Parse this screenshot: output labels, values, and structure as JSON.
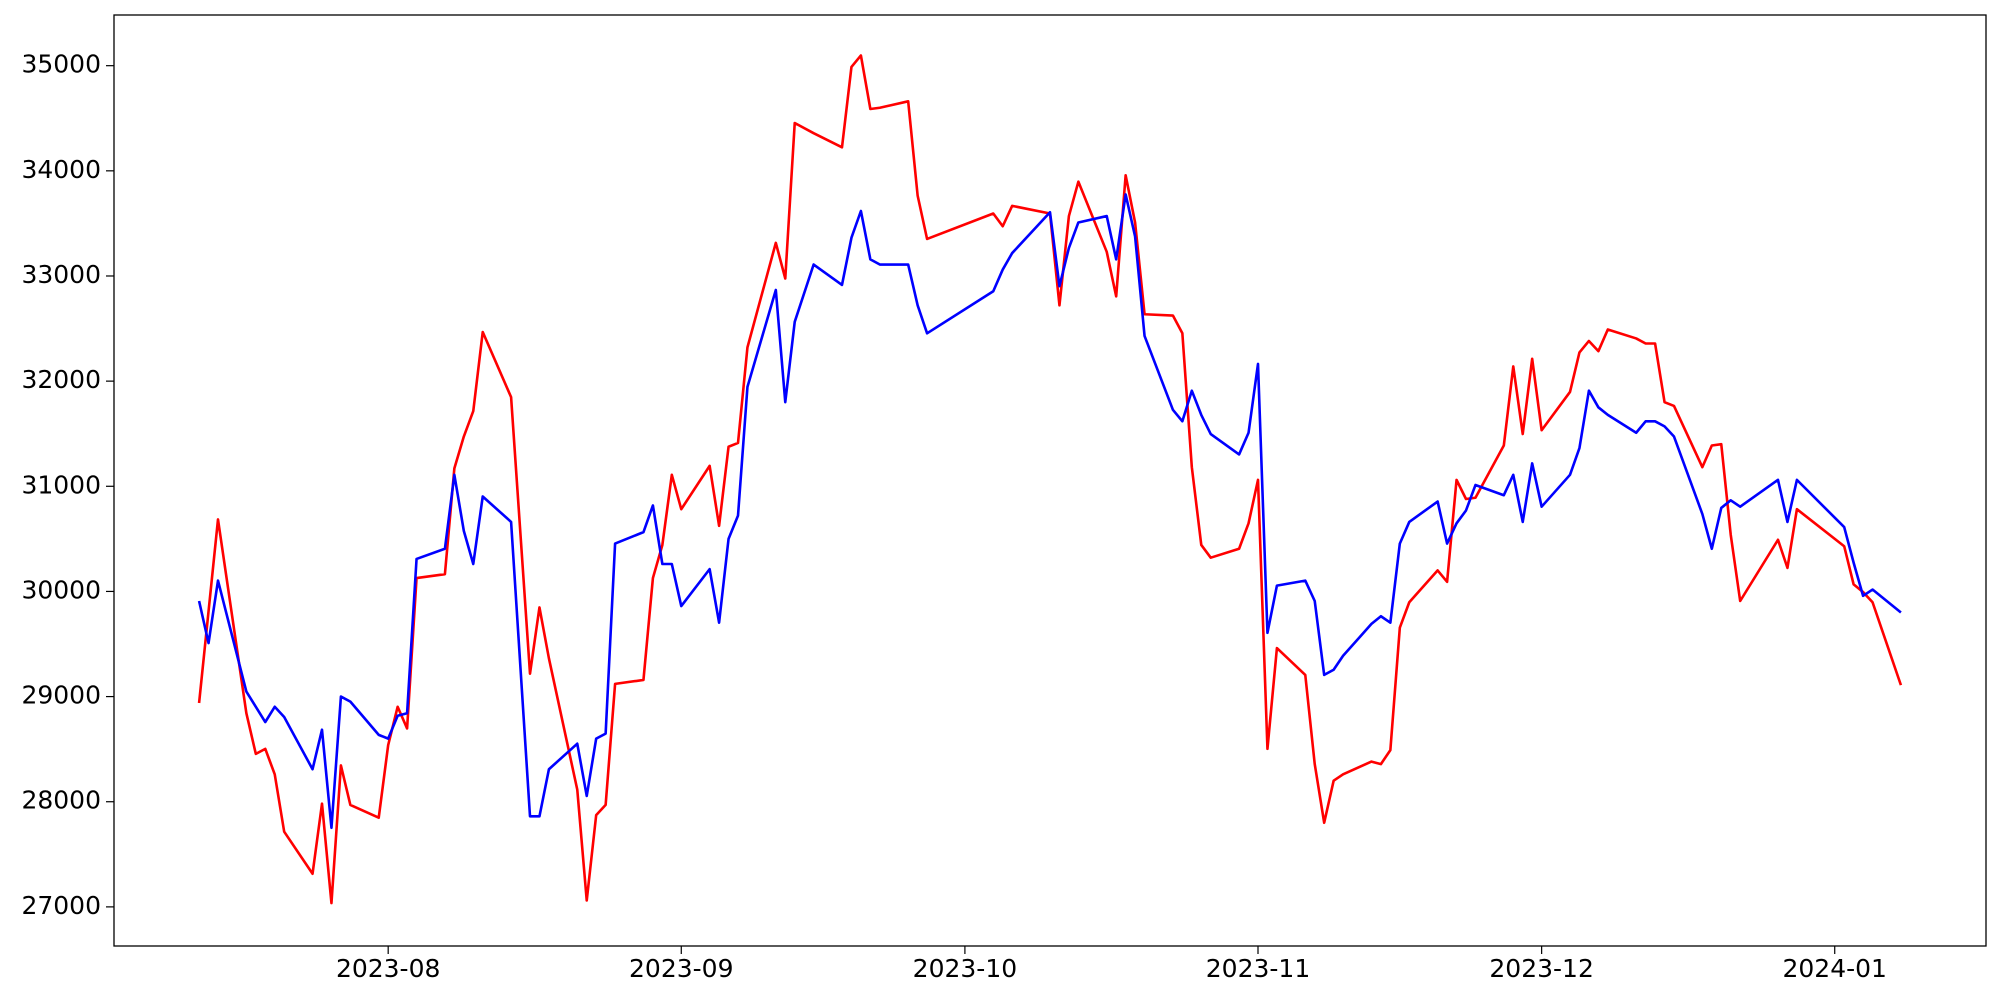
{
  "chart_data": {
    "type": "line",
    "x": [
      19550,
      19551,
      19552,
      19555,
      19556,
      19557,
      19558,
      19559,
      19562,
      19563,
      19564,
      19565,
      19566,
      19569,
      19570,
      19571,
      19572,
      19573,
      19576,
      19577,
      19578,
      19579,
      19580,
      19583,
      19585,
      19586,
      19587,
      19590,
      19591,
      19592,
      19593,
      19594,
      19597,
      19598,
      19599,
      19600,
      19601,
      19604,
      19605,
      19606,
      19607,
      19608,
      19611,
      19612,
      19613,
      19615,
      19618,
      19619,
      19620,
      19621,
      19622,
      19625,
      19626,
      19627,
      19634,
      19635,
      19636,
      19640,
      19641,
      19642,
      19643,
      19646,
      19647,
      19648,
      19649,
      19650,
      19653,
      19654,
      19655,
      19656,
      19657,
      19660,
      19661,
      19662,
      19663,
      19664,
      19667,
      19668,
      19669,
      19670,
      19671,
      19674,
      19675,
      19676,
      19677,
      19678,
      19681,
      19682,
      19683,
      19684,
      19685,
      19688,
      19689,
      19690,
      19691,
      19692,
      19695,
      19696,
      19697,
      19698,
      19699,
      19702,
      19703,
      19704,
      19705,
      19706,
      19709,
      19710,
      19711,
      19712,
      19713,
      19717,
      19718,
      19719,
      19724,
      19725,
      19726,
      19727,
      19730
    ],
    "series": [
      {
        "name": "red",
        "color": "#ff0000",
        "values": [
          28939,
          29812,
          30685,
          28842,
          28455,
          28503,
          28261,
          27715,
          27315,
          27982,
          27036,
          28345,
          27970,
          27848,
          28539,
          28903,
          28697,
          30127,
          30164,
          31170,
          31473,
          31715,
          32467,
          31848,
          29218,
          29848,
          29364,
          28115,
          27061,
          27873,
          27970,
          29121,
          29158,
          30127,
          30442,
          31109,
          30782,
          31194,
          30624,
          31376,
          31412,
          32321,
          33315,
          32976,
          34455,
          34358,
          34224,
          34988,
          35097,
          34588,
          34600,
          34661,
          33764,
          33352,
          33594,
          33473,
          33667,
          33594,
          32721,
          33570,
          33897,
          33230,
          32806,
          33958,
          33509,
          32636,
          32624,
          32455,
          31182,
          30442,
          30321,
          30406,
          30648,
          31061,
          28503,
          29461,
          29206,
          28358,
          27800,
          28200,
          28261,
          28382,
          28358,
          28491,
          29655,
          29897,
          30200,
          30091,
          31061,
          30879,
          30891,
          31388,
          32140,
          31497,
          32212,
          31533,
          31897,
          32273,
          32382,
          32285,
          32491,
          32406,
          32358,
          32358,
          31800,
          31764,
          31182,
          31388,
          31400,
          30539,
          29909,
          30491,
          30224,
          30782,
          30430,
          30067,
          29994,
          29897,
          29109
        ]
      },
      {
        "name": "blue",
        "color": "#0000ff",
        "values": [
          29909,
          29509,
          30103,
          29048,
          28903,
          28758,
          28903,
          28806,
          28309,
          28685,
          27752,
          29000,
          28952,
          28636,
          28600,
          28818,
          28842,
          30309,
          30406,
          31109,
          30576,
          30261,
          30903,
          30661,
          27861,
          27861,
          28309,
          28552,
          28055,
          28600,
          28648,
          30455,
          30564,
          30818,
          30261,
          30261,
          29861,
          30212,
          29703,
          30500,
          30721,
          31945,
          32867,
          31800,
          32564,
          33109,
          32915,
          33364,
          33618,
          33158,
          33109,
          33109,
          32721,
          32455,
          32855,
          33061,
          33218,
          33606,
          32903,
          33267,
          33509,
          33570,
          33158,
          33776,
          33376,
          32430,
          31727,
          31618,
          31909,
          31679,
          31497,
          31303,
          31509,
          32164,
          29606,
          30055,
          30103,
          29909,
          29206,
          29255,
          29388,
          29691,
          29764,
          29703,
          30455,
          30661,
          30855,
          30455,
          30648,
          30770,
          31012,
          30915,
          31109,
          30661,
          31218,
          30806,
          31109,
          31364,
          31909,
          31751,
          31679,
          31509,
          31618,
          31618,
          31570,
          31473,
          30736,
          30406,
          30794,
          30867,
          30806,
          31061,
          30661,
          31061,
          30612,
          30273,
          29958,
          30018,
          29800
        ]
      }
    ],
    "xlim": [
      19541,
      19739
    ],
    "xticks": [
      {
        "value": 19570,
        "label": "2023-08"
      },
      {
        "value": 19601,
        "label": "2023-09"
      },
      {
        "value": 19631,
        "label": "2023-10"
      },
      {
        "value": 19662,
        "label": "2023-11"
      },
      {
        "value": 19692,
        "label": "2023-12"
      },
      {
        "value": 19723,
        "label": "2024-01"
      }
    ],
    "ylim": [
      26628,
      35482
    ],
    "yticks": [
      27000,
      28000,
      29000,
      30000,
      31000,
      32000,
      33000,
      34000,
      35000
    ],
    "grid": false
  }
}
